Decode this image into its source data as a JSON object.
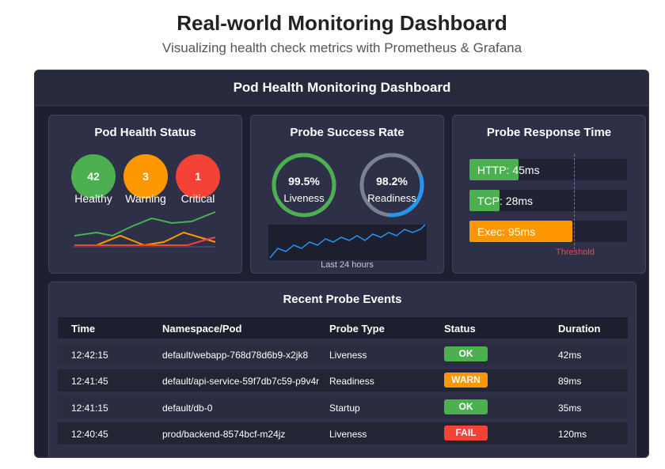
{
  "page": {
    "title": "Real-world Monitoring Dashboard",
    "subtitle": "Visualizing health check metrics with Prometheus & Grafana"
  },
  "dashboard": {
    "title": "Pod Health Monitoring Dashboard",
    "health": {
      "title": "Pod Health Status",
      "items": [
        {
          "count": "42",
          "label": "Healthy",
          "color": "#4caf50"
        },
        {
          "count": "3",
          "label": "Warning",
          "color": "#ff9800"
        },
        {
          "count": "1",
          "label": "Critical",
          "color": "#f44336"
        }
      ]
    },
    "probe_rate": {
      "title": "Probe Success Rate",
      "rings": [
        {
          "value": "99.5%",
          "label": "Liveness",
          "fraction": 0.995,
          "color": "#4caf50"
        },
        {
          "value": "98.2%",
          "label": "Readiness",
          "fraction": 0.982,
          "color": "#2196f3"
        }
      ],
      "caption": "Last 24 hours"
    },
    "response": {
      "title": "Probe Response Time",
      "bars": [
        {
          "label": "HTTP: 45ms",
          "ms": 45,
          "color": "#4caf50"
        },
        {
          "label": "TCP: 28ms",
          "ms": 28,
          "color": "#4caf50"
        },
        {
          "label": "Exec: 95ms",
          "ms": 95,
          "color": "#ff9800"
        }
      ],
      "max_ms": 145,
      "threshold_label": "Threshold"
    },
    "events": {
      "title": "Recent Probe Events",
      "columns": [
        "Time",
        "Namespace/Pod",
        "Probe Type",
        "Status",
        "Duration"
      ],
      "rows": [
        {
          "time": "12:42:15",
          "pod": "default/webapp-768d78d6b9-x2jk8",
          "probe": "Liveness",
          "status": "OK",
          "status_color": "#4caf50",
          "duration": "42ms"
        },
        {
          "time": "12:41:45",
          "pod": "default/api-service-59f7db7c59-p9v4r",
          "probe": "Readiness",
          "status": "WARN",
          "status_color": "#ff9800",
          "duration": "89ms"
        },
        {
          "time": "12:41:15",
          "pod": "default/db-0",
          "probe": "Startup",
          "status": "OK",
          "status_color": "#4caf50",
          "duration": "35ms"
        },
        {
          "time": "12:40:45",
          "pod": "prod/backend-8574bcf-m24jz",
          "probe": "Liveness",
          "status": "FAIL",
          "status_color": "#f44336",
          "duration": "120ms"
        }
      ]
    }
  }
}
